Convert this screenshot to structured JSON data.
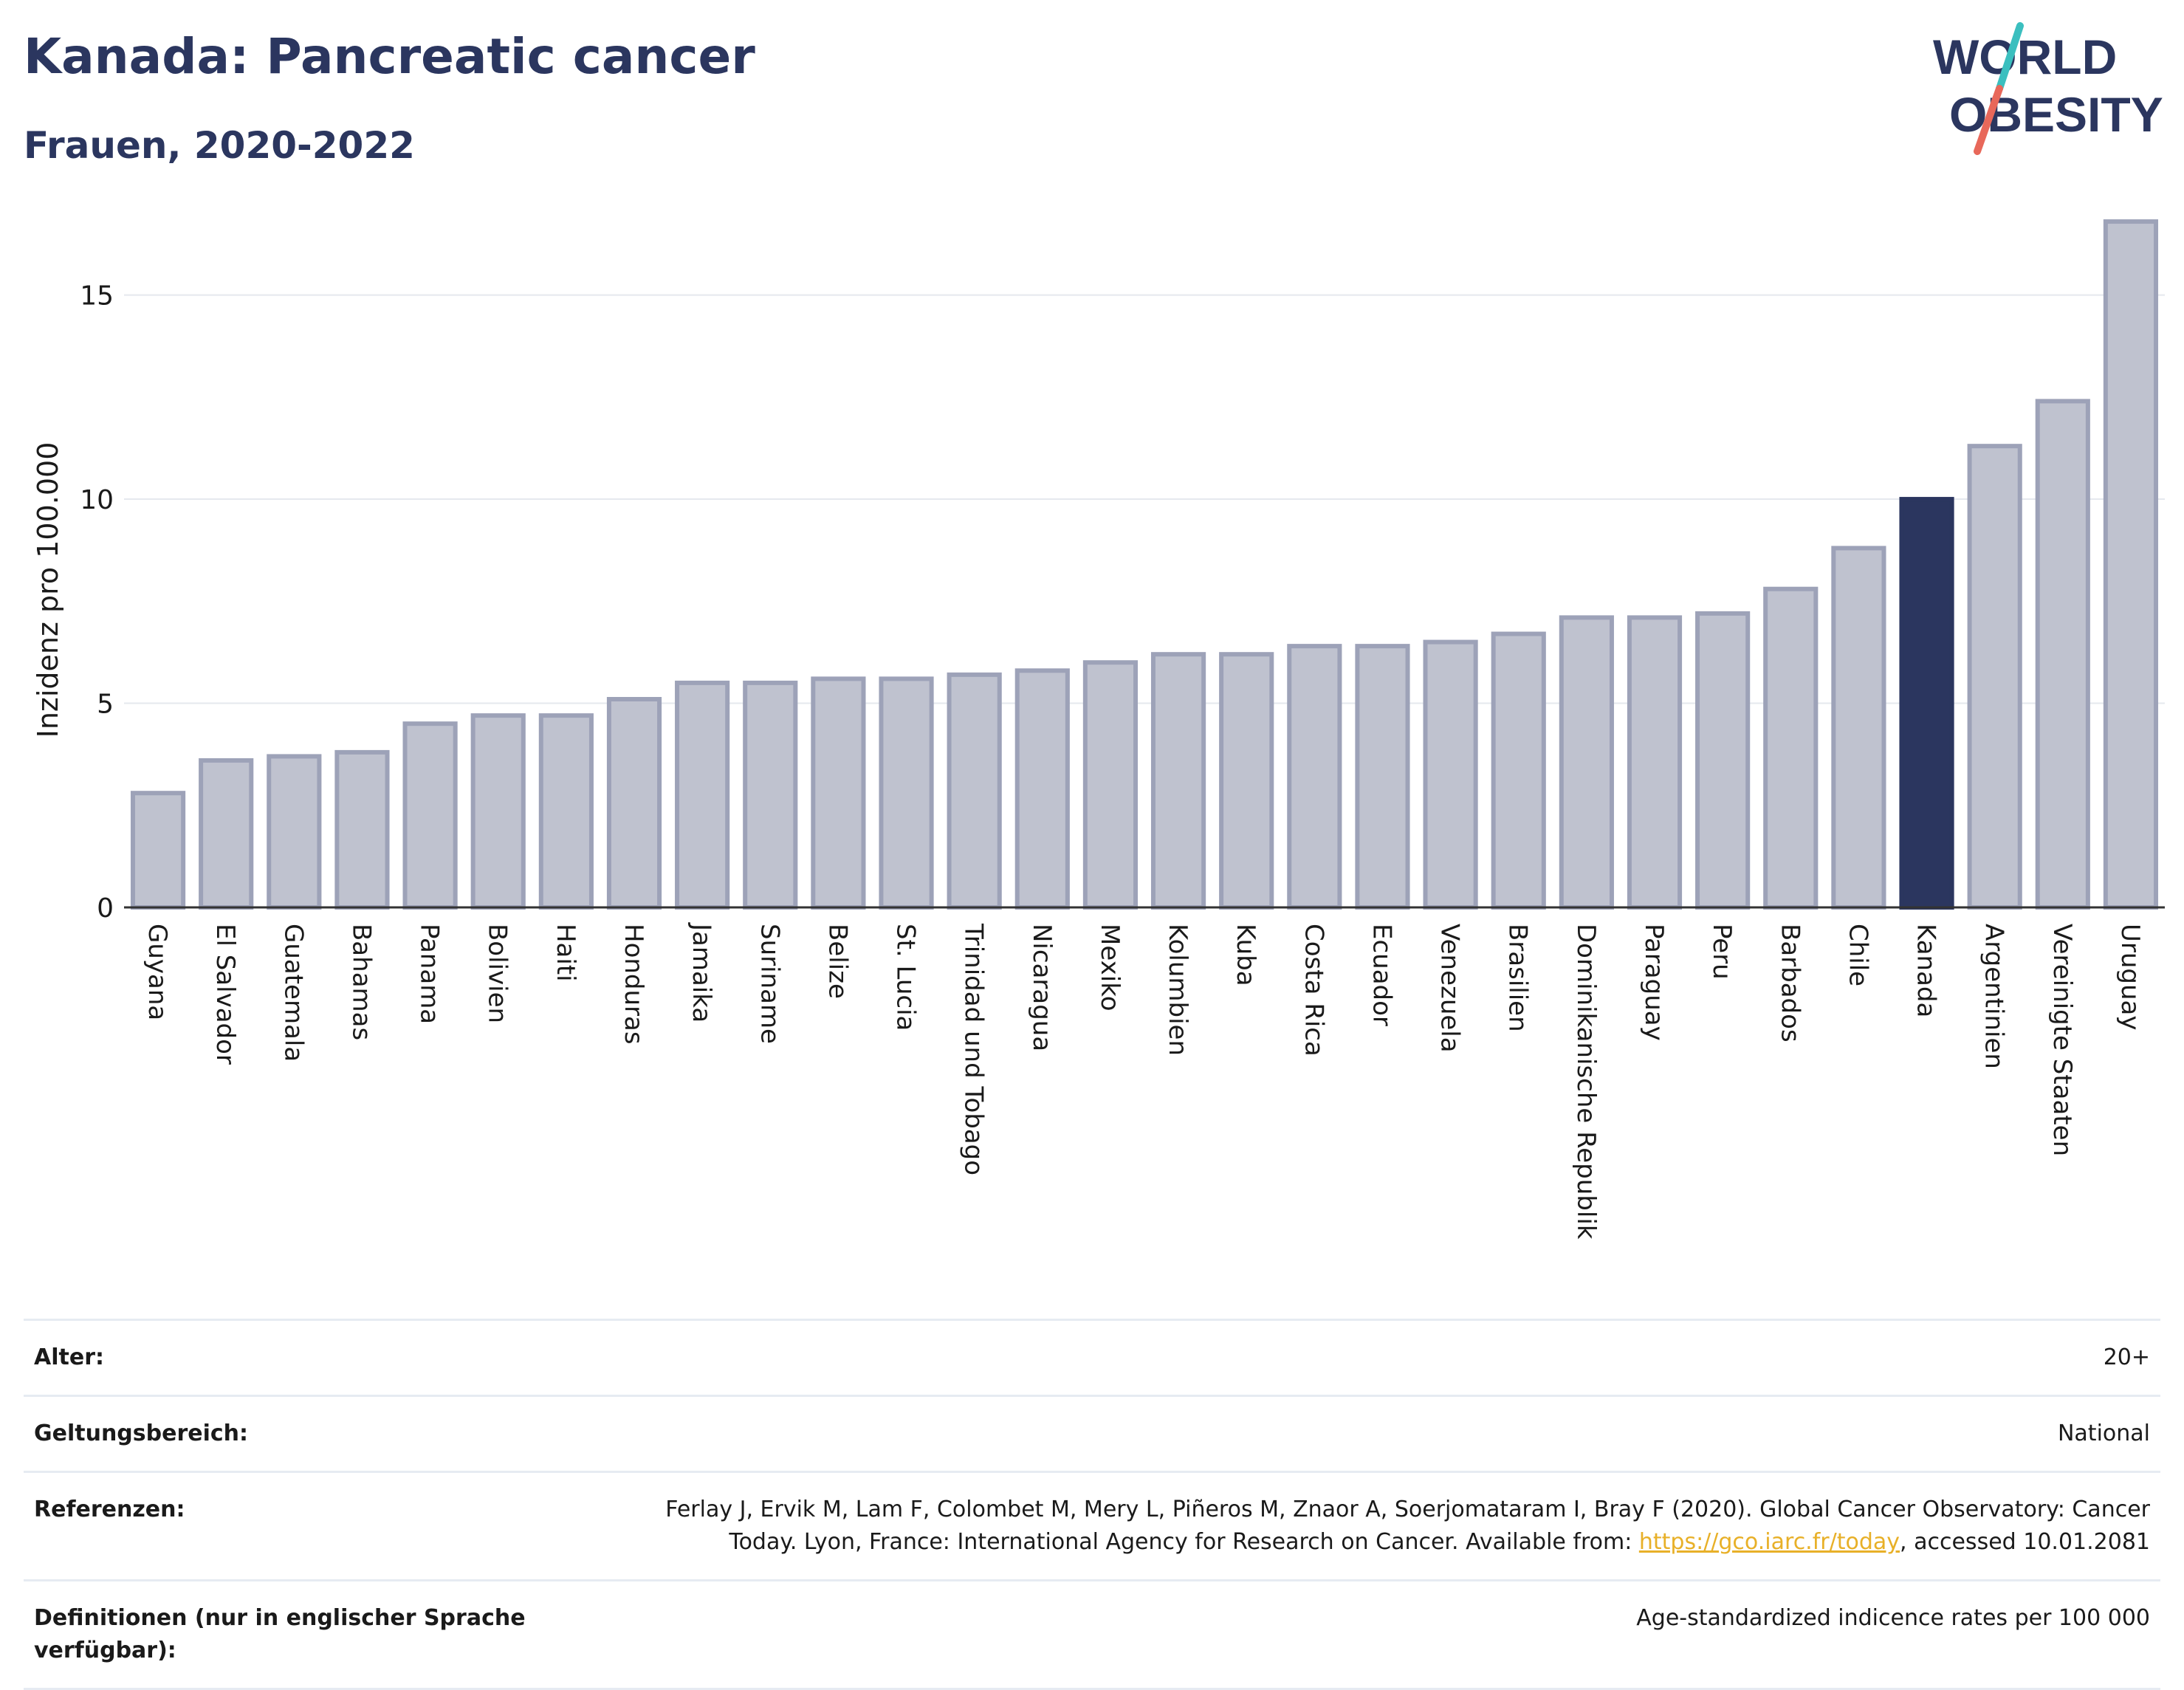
{
  "header": {
    "title": "Kanada: Pancreatic cancer",
    "subtitle": "Frauen, 2020-2022"
  },
  "logo": {
    "line1": "WORLD",
    "line2": "OBESITY"
  },
  "colors": {
    "bar": "#bfc2cf",
    "bar_stroke": "#9da2b8",
    "highlight": "#2b365f",
    "title": "#2b365f",
    "grid": "#e5e8ee",
    "link": "#e8b028"
  },
  "chart_data": {
    "type": "bar",
    "ylabel": "Inzidenz pro 100.000",
    "xlabel": "",
    "ylim": [
      0,
      17
    ],
    "yticks": [
      0,
      5,
      10,
      15
    ],
    "grid": true,
    "highlight": "Kanada",
    "categories": [
      "Guyana",
      "El Salvador",
      "Guatemala",
      "Bahamas",
      "Panama",
      "Bolivien",
      "Haiti",
      "Honduras",
      "Jamaika",
      "Suriname",
      "Belize",
      "St. Lucia",
      "Trinidad und Tobago",
      "Nicaragua",
      "Mexiko",
      "Kolumbien",
      "Kuba",
      "Costa Rica",
      "Ecuador",
      "Venezuela",
      "Brasilien",
      "Dominikanische Republik",
      "Paraguay",
      "Peru",
      "Barbados",
      "Chile",
      "Kanada",
      "Argentinien",
      "Vereinigte Staaten",
      "Uruguay"
    ],
    "values": [
      2.8,
      3.6,
      3.7,
      3.8,
      4.5,
      4.7,
      4.7,
      5.1,
      5.5,
      5.5,
      5.6,
      5.6,
      5.7,
      5.8,
      6.0,
      6.2,
      6.2,
      6.4,
      6.4,
      6.5,
      6.7,
      7.1,
      7.1,
      7.2,
      7.8,
      8.8,
      10.0,
      11.3,
      12.4,
      16.8
    ]
  },
  "info": {
    "age_label": "Alter:",
    "age_value": "20+",
    "scope_label": "Geltungsbereich:",
    "scope_value": "National",
    "ref_label": "Referenzen:",
    "ref_text_1": "Ferlay J, Ervik M, Lam F, Colombet M, Mery L, Piñeros M, Znaor A, Soerjomataram I, Bray F (2020). Global Cancer Observatory: Cancer Today. Lyon, France: International Agency for Research on Cancer. Available from: ",
    "ref_link": "https://gco.iarc.fr/today",
    "ref_text_2": ", accessed 10.01.2081",
    "def_label": "Definitionen (nur in englischer Sprache verfügbar):",
    "def_value": "Age-standardized indicence rates per 100 000"
  }
}
